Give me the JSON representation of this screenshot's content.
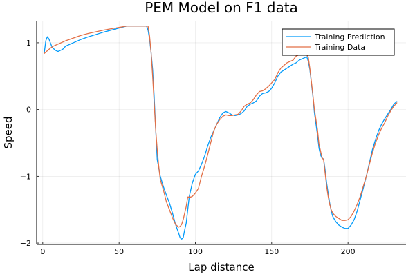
{
  "chart_data": {
    "type": "line",
    "title": "PEM Model on F1 data",
    "xlabel": "Lap distance",
    "ylabel": "Speed",
    "xlim": [
      -4,
      238
    ],
    "ylim": [
      -2.02,
      1.33
    ],
    "xticks": [
      0,
      50,
      100,
      150,
      200
    ],
    "yticks": [
      -2,
      -1,
      0,
      1
    ],
    "ytick_labels": [
      "−2",
      "−1",
      "0",
      "1"
    ],
    "grid": true,
    "legend_position": "top-right",
    "series": [
      {
        "name": "Training Prediction",
        "color": "#009AFA",
        "points": [
          [
            1,
            0.85
          ],
          [
            2,
            1.03
          ],
          [
            3,
            1.09
          ],
          [
            4,
            1.06
          ],
          [
            5,
            1.0
          ],
          [
            6,
            0.94
          ],
          [
            8,
            0.89
          ],
          [
            10,
            0.87
          ],
          [
            13,
            0.9
          ],
          [
            15,
            0.95
          ],
          [
            20,
            1.0
          ],
          [
            25,
            1.05
          ],
          [
            30,
            1.09
          ],
          [
            40,
            1.16
          ],
          [
            50,
            1.22
          ],
          [
            55,
            1.25
          ],
          [
            60,
            1.25
          ],
          [
            68,
            1.25
          ],
          [
            69,
            1.19
          ],
          [
            70,
            1.05
          ],
          [
            71,
            0.85
          ],
          [
            72,
            0.6
          ],
          [
            73,
            0.2
          ],
          [
            74,
            -0.3
          ],
          [
            75,
            -0.75
          ],
          [
            77,
            -1.0
          ],
          [
            79,
            -1.15
          ],
          [
            81,
            -1.28
          ],
          [
            83,
            -1.4
          ],
          [
            85,
            -1.55
          ],
          [
            87,
            -1.72
          ],
          [
            89,
            -1.85
          ],
          [
            90,
            -1.92
          ],
          [
            91,
            -1.94
          ],
          [
            92,
            -1.92
          ],
          [
            93,
            -1.8
          ],
          [
            94,
            -1.7
          ],
          [
            95,
            -1.5
          ],
          [
            96,
            -1.3
          ],
          [
            98,
            -1.1
          ],
          [
            100,
            -0.97
          ],
          [
            102,
            -0.92
          ],
          [
            104,
            -0.82
          ],
          [
            106,
            -0.7
          ],
          [
            108,
            -0.55
          ],
          [
            110,
            -0.42
          ],
          [
            112,
            -0.32
          ],
          [
            114,
            -0.22
          ],
          [
            116,
            -0.12
          ],
          [
            118,
            -0.05
          ],
          [
            120,
            -0.03
          ],
          [
            122,
            -0.05
          ],
          [
            124,
            -0.08
          ],
          [
            126,
            -0.09
          ],
          [
            128,
            -0.08
          ],
          [
            130,
            -0.06
          ],
          [
            132,
            -0.02
          ],
          [
            134,
            0.05
          ],
          [
            136,
            0.08
          ],
          [
            138,
            0.1
          ],
          [
            140,
            0.13
          ],
          [
            142,
            0.2
          ],
          [
            144,
            0.24
          ],
          [
            146,
            0.25
          ],
          [
            148,
            0.27
          ],
          [
            150,
            0.32
          ],
          [
            152,
            0.4
          ],
          [
            154,
            0.5
          ],
          [
            156,
            0.56
          ],
          [
            158,
            0.59
          ],
          [
            160,
            0.62
          ],
          [
            162,
            0.65
          ],
          [
            164,
            0.68
          ],
          [
            166,
            0.7
          ],
          [
            168,
            0.74
          ],
          [
            170,
            0.76
          ],
          [
            172,
            0.78
          ],
          [
            173,
            0.79
          ],
          [
            174,
            0.72
          ],
          [
            175,
            0.6
          ],
          [
            176,
            0.4
          ],
          [
            177,
            0.2
          ],
          [
            178,
            -0.05
          ],
          [
            180,
            -0.38
          ],
          [
            181,
            -0.58
          ],
          [
            182,
            -0.68
          ],
          [
            183,
            -0.73
          ],
          [
            184,
            -0.74
          ],
          [
            185,
            -0.9
          ],
          [
            186,
            -1.1
          ],
          [
            187,
            -1.25
          ],
          [
            188,
            -1.4
          ],
          [
            189,
            -1.52
          ],
          [
            190,
            -1.6
          ],
          [
            192,
            -1.68
          ],
          [
            194,
            -1.73
          ],
          [
            196,
            -1.76
          ],
          [
            198,
            -1.78
          ],
          [
            200,
            -1.78
          ],
          [
            202,
            -1.73
          ],
          [
            204,
            -1.65
          ],
          [
            206,
            -1.52
          ],
          [
            208,
            -1.35
          ],
          [
            210,
            -1.18
          ],
          [
            212,
            -1.0
          ],
          [
            214,
            -0.8
          ],
          [
            216,
            -0.6
          ],
          [
            218,
            -0.45
          ],
          [
            220,
            -0.32
          ],
          [
            222,
            -0.22
          ],
          [
            224,
            -0.14
          ],
          [
            226,
            -0.07
          ],
          [
            228,
            0.0
          ],
          [
            230,
            0.08
          ],
          [
            232,
            0.12
          ]
        ]
      },
      {
        "name": "Training Data",
        "color": "#E26F46",
        "points": [
          [
            1,
            0.84
          ],
          [
            3,
            0.88
          ],
          [
            5,
            0.92
          ],
          [
            7,
            0.95
          ],
          [
            9,
            0.97
          ],
          [
            11,
            0.99
          ],
          [
            13,
            1.01
          ],
          [
            15,
            1.03
          ],
          [
            20,
            1.07
          ],
          [
            25,
            1.11
          ],
          [
            30,
            1.14
          ],
          [
            40,
            1.19
          ],
          [
            50,
            1.23
          ],
          [
            55,
            1.25
          ],
          [
            60,
            1.25
          ],
          [
            69,
            1.25
          ],
          [
            70,
            1.1
          ],
          [
            71,
            0.85
          ],
          [
            72,
            0.5
          ],
          [
            73,
            0.1
          ],
          [
            74,
            -0.3
          ],
          [
            75,
            -0.6
          ],
          [
            76,
            -0.85
          ],
          [
            77,
            -1.05
          ],
          [
            79,
            -1.2
          ],
          [
            81,
            -1.38
          ],
          [
            83,
            -1.5
          ],
          [
            85,
            -1.62
          ],
          [
            87,
            -1.72
          ],
          [
            89,
            -1.76
          ],
          [
            90,
            -1.75
          ],
          [
            91,
            -1.72
          ],
          [
            92,
            -1.65
          ],
          [
            93,
            -1.55
          ],
          [
            94,
            -1.45
          ],
          [
            95,
            -1.31
          ],
          [
            97,
            -1.31
          ],
          [
            98,
            -1.3
          ],
          [
            100,
            -1.25
          ],
          [
            102,
            -1.18
          ],
          [
            104,
            -1.0
          ],
          [
            106,
            -0.85
          ],
          [
            108,
            -0.68
          ],
          [
            110,
            -0.5
          ],
          [
            112,
            -0.32
          ],
          [
            114,
            -0.22
          ],
          [
            116,
            -0.15
          ],
          [
            118,
            -0.1
          ],
          [
            120,
            -0.08
          ],
          [
            122,
            -0.09
          ],
          [
            124,
            -0.09
          ],
          [
            126,
            -0.08
          ],
          [
            128,
            -0.07
          ],
          [
            130,
            -0.02
          ],
          [
            132,
            0.05
          ],
          [
            134,
            0.08
          ],
          [
            136,
            0.1
          ],
          [
            138,
            0.15
          ],
          [
            140,
            0.22
          ],
          [
            142,
            0.27
          ],
          [
            144,
            0.28
          ],
          [
            146,
            0.31
          ],
          [
            148,
            0.35
          ],
          [
            150,
            0.4
          ],
          [
            152,
            0.45
          ],
          [
            154,
            0.55
          ],
          [
            156,
            0.62
          ],
          [
            158,
            0.66
          ],
          [
            160,
            0.7
          ],
          [
            162,
            0.72
          ],
          [
            164,
            0.74
          ],
          [
            166,
            0.8
          ],
          [
            168,
            0.82
          ],
          [
            170,
            0.84
          ],
          [
            172,
            0.86
          ],
          [
            174,
            0.78
          ],
          [
            175,
            0.62
          ],
          [
            176,
            0.42
          ],
          [
            177,
            0.22
          ],
          [
            178,
            0.0
          ],
          [
            180,
            -0.3
          ],
          [
            181,
            -0.52
          ],
          [
            182,
            -0.62
          ],
          [
            183,
            -0.72
          ],
          [
            184,
            -0.75
          ],
          [
            185,
            -0.95
          ],
          [
            186,
            -1.15
          ],
          [
            187,
            -1.3
          ],
          [
            188,
            -1.42
          ],
          [
            189,
            -1.5
          ],
          [
            190,
            -1.55
          ],
          [
            192,
            -1.6
          ],
          [
            194,
            -1.63
          ],
          [
            196,
            -1.66
          ],
          [
            198,
            -1.66
          ],
          [
            200,
            -1.65
          ],
          [
            202,
            -1.6
          ],
          [
            204,
            -1.52
          ],
          [
            206,
            -1.42
          ],
          [
            208,
            -1.3
          ],
          [
            210,
            -1.15
          ],
          [
            212,
            -1.0
          ],
          [
            214,
            -0.82
          ],
          [
            216,
            -0.65
          ],
          [
            218,
            -0.5
          ],
          [
            220,
            -0.38
          ],
          [
            222,
            -0.28
          ],
          [
            224,
            -0.2
          ],
          [
            226,
            -0.1
          ],
          [
            228,
            -0.02
          ],
          [
            230,
            0.05
          ],
          [
            232,
            0.1
          ]
        ]
      }
    ]
  }
}
